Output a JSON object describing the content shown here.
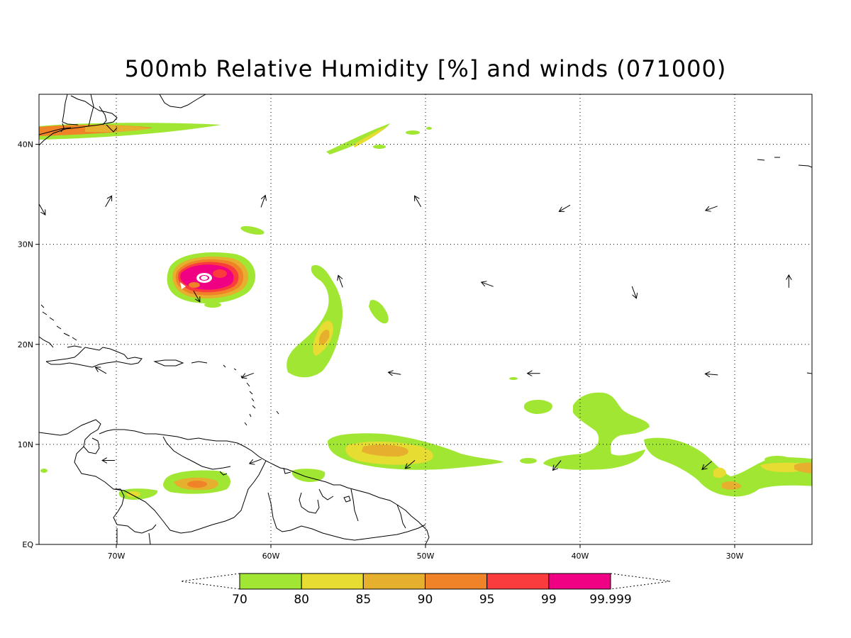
{
  "title": "500mb Relative Humidity [%] and winds (071000)",
  "map": {
    "lon_range": [
      -75,
      -25
    ],
    "lat_range": [
      0,
      45
    ],
    "lat_ticks": [
      {
        "value": 40,
        "label": "40N"
      },
      {
        "value": 30,
        "label": "30N"
      },
      {
        "value": 20,
        "label": "20N"
      },
      {
        "value": 10,
        "label": "10N"
      },
      {
        "value": 0,
        "label": "EQ"
      }
    ],
    "lon_ticks": [
      {
        "value": -70,
        "label": "70W"
      },
      {
        "value": -60,
        "label": "60W"
      },
      {
        "value": -50,
        "label": "50W"
      },
      {
        "value": -40,
        "label": "40W"
      },
      {
        "value": -30,
        "label": "30W"
      }
    ],
    "grid": "dotted"
  },
  "colorbar": {
    "levels": [
      "70",
      "80",
      "85",
      "90",
      "95",
      "99",
      "99.999"
    ],
    "colors": [
      "#a0e632",
      "#e6dc32",
      "#e6af2d",
      "#f08228",
      "#fa3c3c",
      "#f00082"
    ],
    "extends": "both"
  },
  "wind_arrows_direction_deg": [
    {
      "lon": -70.5,
      "lat": 34.3,
      "dir": 30
    },
    {
      "lon": -60.5,
      "lat": 34.3,
      "dir": 20
    },
    {
      "lon": -50.5,
      "lat": 34.3,
      "dir": -30
    },
    {
      "lon": -41,
      "lat": 33.6,
      "dir": -120
    },
    {
      "lon": -31.5,
      "lat": 33.6,
      "dir": -110
    },
    {
      "lon": -64.8,
      "lat": 24.8,
      "dir": 150
    },
    {
      "lon": -55.5,
      "lat": 26.3,
      "dir": -20
    },
    {
      "lon": -46,
      "lat": 26,
      "dir": -70
    },
    {
      "lon": -36.5,
      "lat": 25.2,
      "dir": 160
    },
    {
      "lon": -26.5,
      "lat": 26.3,
      "dir": 0
    },
    {
      "lon": -71,
      "lat": 17.4,
      "dir": -60
    },
    {
      "lon": -61.5,
      "lat": 16.9,
      "dir": -110
    },
    {
      "lon": -52,
      "lat": 17.1,
      "dir": -80
    },
    {
      "lon": -43,
      "lat": 17.1,
      "dir": -90
    },
    {
      "lon": -31.5,
      "lat": 17,
      "dir": -85
    },
    {
      "lon": -70.5,
      "lat": 8.4,
      "dir": -90
    },
    {
      "lon": -61,
      "lat": 8.3,
      "dir": -110
    },
    {
      "lon": -51,
      "lat": 8,
      "dir": -130
    },
    {
      "lon": -41.5,
      "lat": 7.9,
      "dir": -140
    },
    {
      "lon": -31.8,
      "lat": 7.9,
      "dir": -130
    },
    {
      "lon": -74.8,
      "lat": 33.5,
      "dir": 150
    }
  ]
}
